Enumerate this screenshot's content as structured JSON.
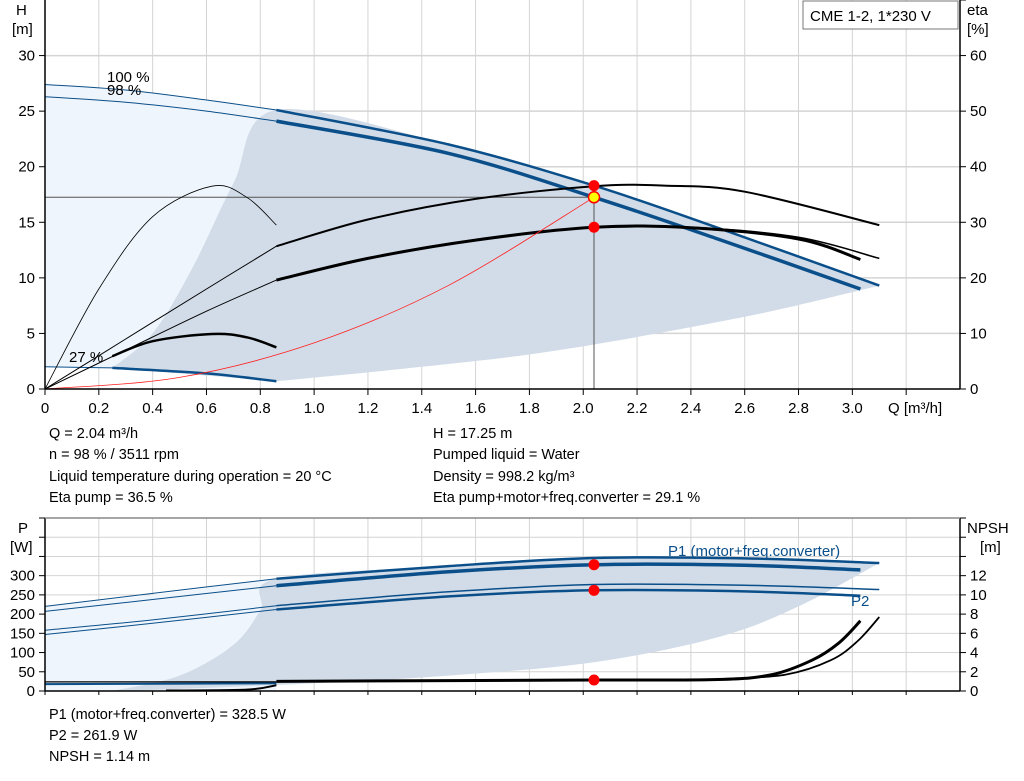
{
  "title_box": "CME 1-2, 1*230 V",
  "colors": {
    "curve_blue": "#0b4f8a",
    "curve_black": "#000000",
    "system_red": "#ff2020",
    "point_red": "#ff0000",
    "point_yellow": "#ffff00",
    "area_light": "#eef5fc",
    "area_dark": "#d1dce8",
    "grid": "#d4d4d4"
  },
  "info_top": {
    "left": [
      "Q = 2.04 m³/h",
      "n = 98 % / 3511 rpm",
      "Liquid temperature during operation = 20 °C",
      "Eta pump = 36.5 %"
    ],
    "right": [
      "H = 17.25 m",
      "Pumped liquid = Water",
      "Density = 998.2 kg/m³",
      "Eta pump+motor+freq.converter = 29.1 %"
    ]
  },
  "info_bottom": [
    "P1 (motor+freq.converter) = 328.5 W",
    "P2 = 261.9 W",
    "NPSH = 1.14 m"
  ],
  "chart_data": [
    {
      "type": "line",
      "xlabel": "Q [m³/h]",
      "ylabel_left": [
        "H",
        "[m]"
      ],
      "ylabel_right": [
        "eta",
        "[%]"
      ],
      "xlim": [
        0,
        3.4
      ],
      "ylim_left": [
        0,
        35
      ],
      "ylim_right": [
        0,
        70
      ],
      "xticks": [
        "0",
        "0.2",
        "0.4",
        "0.6",
        "0.8",
        "1.0",
        "1.2",
        "1.4",
        "1.6",
        "1.8",
        "2.0",
        "2.2",
        "2.4",
        "2.6",
        "2.8",
        "3.0"
      ],
      "yticks_left": [
        "0",
        "5",
        "10",
        "15",
        "20",
        "25",
        "30"
      ],
      "yticks_right": [
        "0",
        "10",
        "20",
        "30",
        "40",
        "50",
        "60"
      ],
      "grid": true,
      "annotations": [
        "100 %",
        "98 %",
        "27 %"
      ],
      "areas": [
        {
          "kind": "light",
          "upper": [
            [
              0,
              27.4
            ],
            [
              0.3,
              26.9
            ],
            [
              0.6,
              26.0
            ],
            [
              0.86,
              25.1
            ]
          ],
          "lower": [
            [
              0,
              2.0
            ],
            [
              0.25,
              1.9
            ],
            [
              0.6,
              1.4
            ],
            [
              0.86,
              0.7
            ]
          ]
        },
        {
          "kind": "dark",
          "upper": [
            [
              0.25,
              1.9
            ],
            [
              0.4,
              5
            ],
            [
              0.55,
              11
            ],
            [
              0.7,
              18.5
            ],
            [
              0.86,
              25.1
            ],
            [
              1.5,
              22.0
            ],
            [
              2.04,
              18.3
            ],
            [
              2.5,
              14.5
            ],
            [
              3.1,
              9.3
            ]
          ],
          "lower": [
            [
              3.1,
              9.3
            ],
            [
              2.6,
              6.5
            ],
            [
              1.91,
              3.5
            ],
            [
              1.4,
              2.0
            ],
            [
              0.86,
              0.7
            ]
          ]
        }
      ],
      "series": [
        {
          "axis": "left",
          "color": "curve_blue",
          "width": 1,
          "points": [
            [
              0,
              27.4
            ],
            [
              0.3,
              26.9
            ],
            [
              0.6,
              26.0
            ],
            [
              0.86,
              25.1
            ]
          ]
        },
        {
          "axis": "left",
          "color": "curve_blue",
          "width": 2.5,
          "points": [
            [
              0.86,
              25.1
            ],
            [
              1.5,
              22.0
            ],
            [
              2.04,
              18.3
            ],
            [
              2.5,
              14.5
            ],
            [
              3.1,
              9.3
            ]
          ]
        },
        {
          "axis": "left",
          "color": "curve_blue",
          "width": 1,
          "points": [
            [
              0,
              26.3
            ],
            [
              0.3,
              25.8
            ],
            [
              0.6,
              25.0
            ],
            [
              0.86,
              24.1
            ]
          ]
        },
        {
          "axis": "left",
          "color": "curve_blue",
          "width": 3.5,
          "points": [
            [
              0.86,
              24.1
            ],
            [
              1.5,
              21.2
            ],
            [
              2.04,
              17.25
            ],
            [
              2.5,
              13.5
            ],
            [
              3.03,
              9.0
            ]
          ]
        },
        {
          "axis": "left",
          "color": "curve_blue",
          "width": 1,
          "points": [
            [
              0,
              2.0
            ],
            [
              0.25,
              1.9
            ]
          ]
        },
        {
          "axis": "left",
          "color": "curve_blue",
          "width": 2.5,
          "points": [
            [
              0.25,
              1.9
            ],
            [
              0.6,
              1.4
            ],
            [
              0.86,
              0.7
            ]
          ]
        },
        {
          "axis": "right",
          "color": "curve_black",
          "width": 0.8,
          "points": [
            [
              0,
              0
            ],
            [
              0.2,
              18
            ],
            [
              0.4,
              31
            ],
            [
              0.62,
              36.5
            ],
            [
              0.75,
              34.5
            ],
            [
              0.86,
              29.5
            ]
          ]
        },
        {
          "axis": "right",
          "color": "curve_black",
          "width": 2.5,
          "points": [
            [
              0.25,
              5.9
            ],
            [
              0.4,
              8.6
            ],
            [
              0.62,
              9.9
            ],
            [
              0.75,
              9.3
            ],
            [
              0.86,
              7.5
            ]
          ]
        },
        {
          "axis": "right",
          "color": "curve_black",
          "width": 1,
          "points": [
            [
              0,
              0
            ],
            [
              0.3,
              9
            ],
            [
              0.6,
              18
            ],
            [
              0.86,
              25.7
            ]
          ]
        },
        {
          "axis": "right",
          "color": "curve_black",
          "width": 2,
          "points": [
            [
              0.86,
              25.7
            ],
            [
              1.2,
              30.5
            ],
            [
              1.6,
              34.2
            ],
            [
              2.04,
              36.5
            ],
            [
              2.3,
              36.6
            ],
            [
              2.6,
              35.5
            ],
            [
              3.1,
              29.5
            ]
          ]
        },
        {
          "axis": "right",
          "color": "curve_black",
          "width": 1,
          "points": [
            [
              0,
              0
            ],
            [
              0.3,
              7
            ],
            [
              0.6,
              14
            ],
            [
              0.86,
              19.6
            ]
          ]
        },
        {
          "axis": "right",
          "color": "curve_black",
          "width": 3,
          "points": [
            [
              0.86,
              19.6
            ],
            [
              1.2,
              23.5
            ],
            [
              1.6,
              26.8
            ],
            [
              2.04,
              29.1
            ],
            [
              2.4,
              29.0
            ],
            [
              2.8,
              27.0
            ],
            [
              3.03,
              23.3
            ]
          ]
        },
        {
          "axis": "right",
          "color": "curve_black",
          "width": 1.5,
          "points": [
            [
              2.04,
              29.1
            ],
            [
              2.4,
              29.1
            ],
            [
              2.8,
              27.3
            ],
            [
              3.1,
              23.5
            ]
          ]
        },
        {
          "axis": "left",
          "color": "system_red",
          "width": 0.8,
          "points": [
            [
              0,
              0
            ],
            [
              0.5,
              1.04
            ],
            [
              1.0,
              4.15
            ],
            [
              1.5,
              9.33
            ],
            [
              2.04,
              17.25
            ]
          ]
        }
      ],
      "operating_point": {
        "Q": 2.04,
        "H": 17.25
      },
      "markers": [
        {
          "axis": "left",
          "x": 2.04,
          "y": 18.3,
          "color": "point_red"
        },
        {
          "axis": "right",
          "x": 2.04,
          "y": 29.1,
          "color": "point_red"
        },
        {
          "axis": "left",
          "x": 2.04,
          "y": 17.25,
          "color": "point_yellow"
        }
      ]
    },
    {
      "type": "line",
      "ylabel_left": [
        "P",
        "[W]"
      ],
      "ylabel_right": [
        "NPSH",
        "[m]"
      ],
      "xlim": [
        0,
        3.4
      ],
      "ylim_left": [
        0,
        450
      ],
      "ylim_right": [
        0,
        18
      ],
      "yticks_left": [
        "0",
        "50",
        "100",
        "150",
        "200",
        "250",
        "300"
      ],
      "yticks_right": [
        "0",
        "2",
        "4",
        "6",
        "8",
        "10",
        "12"
      ],
      "grid": true,
      "annotations": [
        "P1 (motor+freq.converter)",
        "P2"
      ],
      "areas": [
        {
          "kind": "light",
          "upper": [
            [
              0,
              220
            ],
            [
              0.4,
              250
            ],
            [
              0.86,
              292
            ]
          ],
          "lower": [
            [
              0,
              0
            ],
            [
              0.86,
              0
            ]
          ]
        },
        {
          "kind": "dark",
          "upper": [
            [
              0.25,
              0
            ],
            [
              0.5,
              40
            ],
            [
              0.7,
              120
            ],
            [
              0.8,
              210
            ],
            [
              0.86,
              292
            ],
            [
              1.5,
              325
            ],
            [
              2.04,
              346
            ],
            [
              2.6,
              345
            ],
            [
              3.1,
              333
            ]
          ],
          "lower": [
            [
              3.1,
              333
            ],
            [
              2.8,
              220
            ],
            [
              2.5,
              140
            ],
            [
              2.04,
              75
            ],
            [
              1.5,
              40
            ],
            [
              1.0,
              20
            ],
            [
              0.3,
              0
            ]
          ]
        }
      ],
      "series": [
        {
          "axis": "left",
          "color": "curve_blue",
          "width": 1,
          "points": [
            [
              0,
              220
            ],
            [
              0.4,
              254
            ],
            [
              0.86,
              292
            ]
          ]
        },
        {
          "axis": "left",
          "color": "curve_blue",
          "width": 2.5,
          "points": [
            [
              0.86,
              292
            ],
            [
              1.5,
              325
            ],
            [
              2.04,
              346
            ],
            [
              2.6,
              345
            ],
            [
              3.1,
              333
            ]
          ]
        },
        {
          "axis": "left",
          "color": "curve_blue",
          "width": 1,
          "points": [
            [
              0,
              207
            ],
            [
              0.4,
              238
            ],
            [
              0.86,
              274
            ]
          ]
        },
        {
          "axis": "left",
          "color": "curve_blue",
          "width": 3.5,
          "points": [
            [
              0.86,
              274
            ],
            [
              1.5,
              310
            ],
            [
              2.04,
              328.5
            ],
            [
              2.6,
              327
            ],
            [
              3.03,
              315
            ]
          ]
        },
        {
          "axis": "left",
          "color": "curve_blue",
          "width": 1,
          "points": [
            [
              0,
              158
            ],
            [
              0.4,
              185
            ],
            [
              0.86,
              222
            ]
          ]
        },
        {
          "axis": "left",
          "color": "curve_blue",
          "width": 1.5,
          "points": [
            [
              0.86,
              222
            ],
            [
              1.5,
              258
            ],
            [
              2.04,
              277
            ],
            [
              2.6,
              275
            ],
            [
              3.1,
              264
            ]
          ]
        },
        {
          "axis": "left",
          "color": "curve_blue",
          "width": 1,
          "points": [
            [
              0,
              147
            ],
            [
              0.4,
              176
            ],
            [
              0.86,
              212
            ]
          ]
        },
        {
          "axis": "left",
          "color": "curve_blue",
          "width": 2.5,
          "points": [
            [
              0.86,
              212
            ],
            [
              1.5,
              246
            ],
            [
              2.04,
              261.9
            ],
            [
              2.6,
              259
            ],
            [
              3.03,
              248
            ]
          ]
        },
        {
          "axis": "left",
          "color": "curve_blue",
          "width": 2,
          "points": [
            [
              0,
              18
            ],
            [
              0.86,
              20
            ]
          ]
        },
        {
          "axis": "right",
          "color": "curve_black",
          "width": 1.2,
          "points": [
            [
              0,
              0.95
            ],
            [
              0.86,
              0.95
            ]
          ]
        },
        {
          "axis": "right",
          "color": "curve_black",
          "width": 2,
          "points": [
            [
              0.45,
              0.05
            ],
            [
              0.75,
              0.15
            ],
            [
              0.86,
              0.6
            ]
          ]
        },
        {
          "axis": "right",
          "color": "curve_black",
          "width": 3,
          "points": [
            [
              0.86,
              1.0
            ],
            [
              1.5,
              1.08
            ],
            [
              2.04,
              1.14
            ],
            [
              2.5,
              1.2
            ],
            [
              2.7,
              1.7
            ],
            [
              2.85,
              3.2
            ],
            [
              2.95,
              5.0
            ],
            [
              3.03,
              7.3
            ]
          ]
        },
        {
          "axis": "right",
          "color": "curve_black",
          "width": 1.8,
          "points": [
            [
              2.5,
              1.2
            ],
            [
              2.75,
              1.7
            ],
            [
              2.92,
              3.2
            ],
            [
              3.02,
              5.2
            ],
            [
              3.1,
              7.7
            ]
          ]
        }
      ],
      "markers": [
        {
          "axis": "left",
          "x": 2.04,
          "y": 328.5,
          "color": "point_red"
        },
        {
          "axis": "left",
          "x": 2.04,
          "y": 261.9,
          "color": "point_red"
        },
        {
          "axis": "right",
          "x": 2.04,
          "y": 1.14,
          "color": "point_red"
        }
      ]
    }
  ]
}
